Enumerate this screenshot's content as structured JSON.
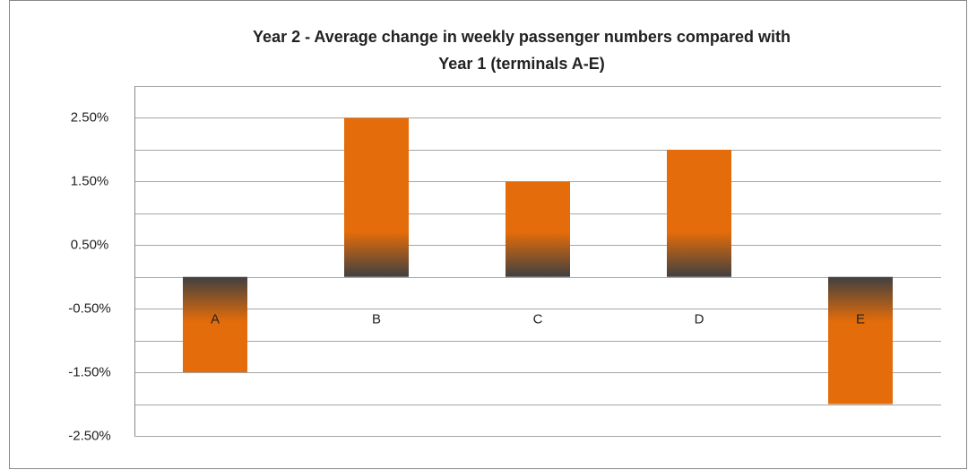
{
  "chart_data": {
    "type": "bar",
    "title": [
      "Year 2 - Average change in weekly passenger numbers compared with",
      "Year 1 (terminals A-E)"
    ],
    "categories": [
      "A",
      "B",
      "C",
      "D",
      "E"
    ],
    "values": [
      -1.5,
      2.5,
      1.5,
      2.0,
      -2.0
    ],
    "color": "#e46c0a",
    "shade_color": "#404040",
    "ylim": [
      -2.5,
      3
    ],
    "yticks": [
      {
        "value": 2.5,
        "label": "2.50%"
      },
      {
        "value": 1.5,
        "label": "1.50%"
      },
      {
        "value": 0.5,
        "label": "0.50%"
      },
      {
        "value": -0.5,
        "label": "-0.50%"
      },
      {
        "value": -1.5,
        "label": "-1.50%"
      },
      {
        "value": -2.5,
        "label": "-2.50%"
      }
    ],
    "minor_yticks": [
      3,
      2,
      1,
      0,
      -1,
      -2
    ],
    "grid": true
  }
}
